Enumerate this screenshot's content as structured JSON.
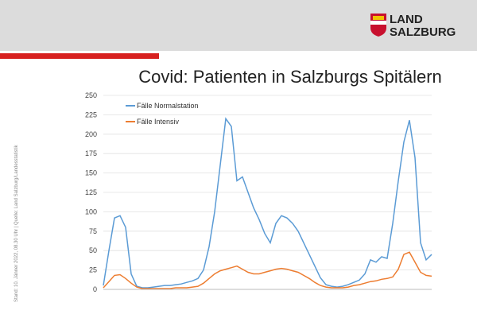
{
  "header": {
    "logo_line1": "LAND",
    "logo_line2": "SALZBURG"
  },
  "source_note": "Stand: 10. Jänner 2022, 08.30 Uhr | Quelle: Land Salzburg/Landesstatistik",
  "chart_data": {
    "type": "line",
    "title": "Covid: Patienten in Salzburgs Spitälern",
    "categories": [
      null,
      null,
      null,
      null,
      null,
      null,
      null,
      null,
      null,
      null,
      null,
      null,
      null,
      null,
      null,
      null,
      null,
      null,
      null,
      null,
      null,
      null,
      null,
      null,
      null,
      null,
      null,
      null,
      null,
      null,
      null,
      null,
      null,
      null,
      null,
      null,
      null,
      null,
      null,
      null,
      null,
      null,
      null,
      null,
      null,
      null,
      null,
      null,
      null,
      null,
      null,
      null,
      null,
      null,
      null,
      null,
      null,
      null,
      null,
      null
    ],
    "series": [
      {
        "name": "Fälle Normalstation",
        "color": "#5b9bd5",
        "values": [
          5,
          50,
          92,
          95,
          80,
          20,
          4,
          2,
          2,
          3,
          4,
          5,
          5,
          6,
          7,
          9,
          11,
          14,
          25,
          55,
          100,
          160,
          220,
          210,
          140,
          145,
          125,
          105,
          90,
          72,
          60,
          85,
          95,
          92,
          85,
          75,
          60,
          45,
          30,
          15,
          6,
          4,
          3,
          4,
          6,
          9,
          12,
          20,
          38,
          35,
          42,
          40,
          85,
          140,
          190,
          218,
          170,
          60,
          38,
          45
        ]
      },
      {
        "name": "Fälle Intensiv",
        "color": "#ed7d31",
        "values": [
          2,
          10,
          18,
          19,
          14,
          8,
          3,
          1,
          1,
          1,
          1,
          1,
          1,
          2,
          2,
          2,
          3,
          4,
          8,
          14,
          20,
          24,
          26,
          28,
          30,
          26,
          22,
          20,
          20,
          22,
          24,
          26,
          27,
          26,
          24,
          22,
          18,
          14,
          9,
          5,
          3,
          2,
          2,
          2,
          3,
          5,
          6,
          8,
          10,
          11,
          13,
          14,
          16,
          26,
          45,
          48,
          35,
          22,
          18,
          17
        ]
      }
    ],
    "ylim": [
      0,
      250
    ],
    "yticks": [
      0,
      25,
      50,
      75,
      100,
      125,
      150,
      175,
      200,
      225,
      250
    ],
    "grid": true
  }
}
